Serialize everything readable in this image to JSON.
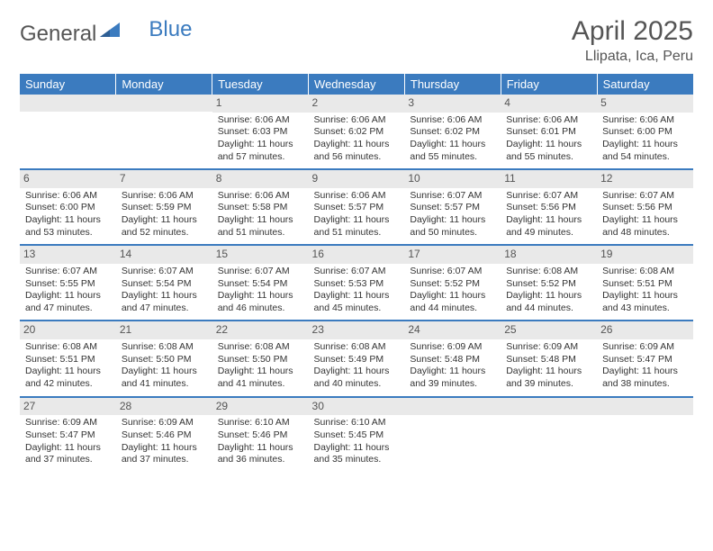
{
  "logo": {
    "text1": "General",
    "text2": "Blue"
  },
  "title": "April 2025",
  "location": "Llipata, Ica, Peru",
  "colors": {
    "header_bg": "#3b7bbf",
    "header_text": "#ffffff",
    "daynum_bg": "#e9e9e9",
    "border": "#3b7bbf",
    "text": "#333333",
    "title_text": "#555555"
  },
  "weekdays": [
    "Sunday",
    "Monday",
    "Tuesday",
    "Wednesday",
    "Thursday",
    "Friday",
    "Saturday"
  ],
  "weeks": [
    [
      null,
      null,
      {
        "n": "1",
        "sr": "Sunrise: 6:06 AM",
        "ss": "Sunset: 6:03 PM",
        "dl": "Daylight: 11 hours and 57 minutes."
      },
      {
        "n": "2",
        "sr": "Sunrise: 6:06 AM",
        "ss": "Sunset: 6:02 PM",
        "dl": "Daylight: 11 hours and 56 minutes."
      },
      {
        "n": "3",
        "sr": "Sunrise: 6:06 AM",
        "ss": "Sunset: 6:02 PM",
        "dl": "Daylight: 11 hours and 55 minutes."
      },
      {
        "n": "4",
        "sr": "Sunrise: 6:06 AM",
        "ss": "Sunset: 6:01 PM",
        "dl": "Daylight: 11 hours and 55 minutes."
      },
      {
        "n": "5",
        "sr": "Sunrise: 6:06 AM",
        "ss": "Sunset: 6:00 PM",
        "dl": "Daylight: 11 hours and 54 minutes."
      }
    ],
    [
      {
        "n": "6",
        "sr": "Sunrise: 6:06 AM",
        "ss": "Sunset: 6:00 PM",
        "dl": "Daylight: 11 hours and 53 minutes."
      },
      {
        "n": "7",
        "sr": "Sunrise: 6:06 AM",
        "ss": "Sunset: 5:59 PM",
        "dl": "Daylight: 11 hours and 52 minutes."
      },
      {
        "n": "8",
        "sr": "Sunrise: 6:06 AM",
        "ss": "Sunset: 5:58 PM",
        "dl": "Daylight: 11 hours and 51 minutes."
      },
      {
        "n": "9",
        "sr": "Sunrise: 6:06 AM",
        "ss": "Sunset: 5:57 PM",
        "dl": "Daylight: 11 hours and 51 minutes."
      },
      {
        "n": "10",
        "sr": "Sunrise: 6:07 AM",
        "ss": "Sunset: 5:57 PM",
        "dl": "Daylight: 11 hours and 50 minutes."
      },
      {
        "n": "11",
        "sr": "Sunrise: 6:07 AM",
        "ss": "Sunset: 5:56 PM",
        "dl": "Daylight: 11 hours and 49 minutes."
      },
      {
        "n": "12",
        "sr": "Sunrise: 6:07 AM",
        "ss": "Sunset: 5:56 PM",
        "dl": "Daylight: 11 hours and 48 minutes."
      }
    ],
    [
      {
        "n": "13",
        "sr": "Sunrise: 6:07 AM",
        "ss": "Sunset: 5:55 PM",
        "dl": "Daylight: 11 hours and 47 minutes."
      },
      {
        "n": "14",
        "sr": "Sunrise: 6:07 AM",
        "ss": "Sunset: 5:54 PM",
        "dl": "Daylight: 11 hours and 47 minutes."
      },
      {
        "n": "15",
        "sr": "Sunrise: 6:07 AM",
        "ss": "Sunset: 5:54 PM",
        "dl": "Daylight: 11 hours and 46 minutes."
      },
      {
        "n": "16",
        "sr": "Sunrise: 6:07 AM",
        "ss": "Sunset: 5:53 PM",
        "dl": "Daylight: 11 hours and 45 minutes."
      },
      {
        "n": "17",
        "sr": "Sunrise: 6:07 AM",
        "ss": "Sunset: 5:52 PM",
        "dl": "Daylight: 11 hours and 44 minutes."
      },
      {
        "n": "18",
        "sr": "Sunrise: 6:08 AM",
        "ss": "Sunset: 5:52 PM",
        "dl": "Daylight: 11 hours and 44 minutes."
      },
      {
        "n": "19",
        "sr": "Sunrise: 6:08 AM",
        "ss": "Sunset: 5:51 PM",
        "dl": "Daylight: 11 hours and 43 minutes."
      }
    ],
    [
      {
        "n": "20",
        "sr": "Sunrise: 6:08 AM",
        "ss": "Sunset: 5:51 PM",
        "dl": "Daylight: 11 hours and 42 minutes."
      },
      {
        "n": "21",
        "sr": "Sunrise: 6:08 AM",
        "ss": "Sunset: 5:50 PM",
        "dl": "Daylight: 11 hours and 41 minutes."
      },
      {
        "n": "22",
        "sr": "Sunrise: 6:08 AM",
        "ss": "Sunset: 5:50 PM",
        "dl": "Daylight: 11 hours and 41 minutes."
      },
      {
        "n": "23",
        "sr": "Sunrise: 6:08 AM",
        "ss": "Sunset: 5:49 PM",
        "dl": "Daylight: 11 hours and 40 minutes."
      },
      {
        "n": "24",
        "sr": "Sunrise: 6:09 AM",
        "ss": "Sunset: 5:48 PM",
        "dl": "Daylight: 11 hours and 39 minutes."
      },
      {
        "n": "25",
        "sr": "Sunrise: 6:09 AM",
        "ss": "Sunset: 5:48 PM",
        "dl": "Daylight: 11 hours and 39 minutes."
      },
      {
        "n": "26",
        "sr": "Sunrise: 6:09 AM",
        "ss": "Sunset: 5:47 PM",
        "dl": "Daylight: 11 hours and 38 minutes."
      }
    ],
    [
      {
        "n": "27",
        "sr": "Sunrise: 6:09 AM",
        "ss": "Sunset: 5:47 PM",
        "dl": "Daylight: 11 hours and 37 minutes."
      },
      {
        "n": "28",
        "sr": "Sunrise: 6:09 AM",
        "ss": "Sunset: 5:46 PM",
        "dl": "Daylight: 11 hours and 37 minutes."
      },
      {
        "n": "29",
        "sr": "Sunrise: 6:10 AM",
        "ss": "Sunset: 5:46 PM",
        "dl": "Daylight: 11 hours and 36 minutes."
      },
      {
        "n": "30",
        "sr": "Sunrise: 6:10 AM",
        "ss": "Sunset: 5:45 PM",
        "dl": "Daylight: 11 hours and 35 minutes."
      },
      null,
      null,
      null
    ]
  ]
}
